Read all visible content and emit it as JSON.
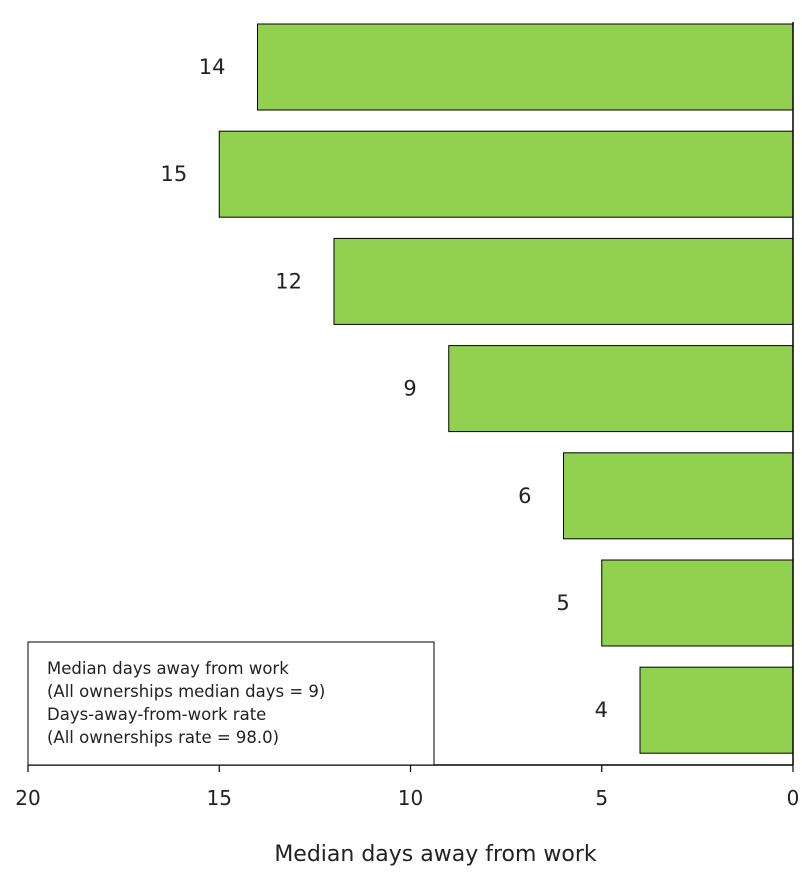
{
  "chart_data": {
    "type": "bar",
    "orientation": "horizontal",
    "x_direction": "reversed",
    "values": [
      14,
      15,
      12,
      9,
      6,
      5,
      4
    ],
    "data_labels": [
      "14",
      "15",
      "12",
      "9",
      "6",
      "5",
      "4"
    ],
    "xlim": [
      0,
      20
    ],
    "xticks": [
      20,
      15,
      10,
      5,
      0
    ],
    "xlabel": "Median days away from work",
    "ylabel": "",
    "title": "",
    "grid": false,
    "bar_color": "#92d050",
    "legend": {
      "placement": "bottom-left",
      "lines": [
        "Median days away from work",
        "(All ownerships median days = 9)",
        "Days-away-from-work rate",
        "(All ownerships rate = 98.0)"
      ]
    }
  }
}
